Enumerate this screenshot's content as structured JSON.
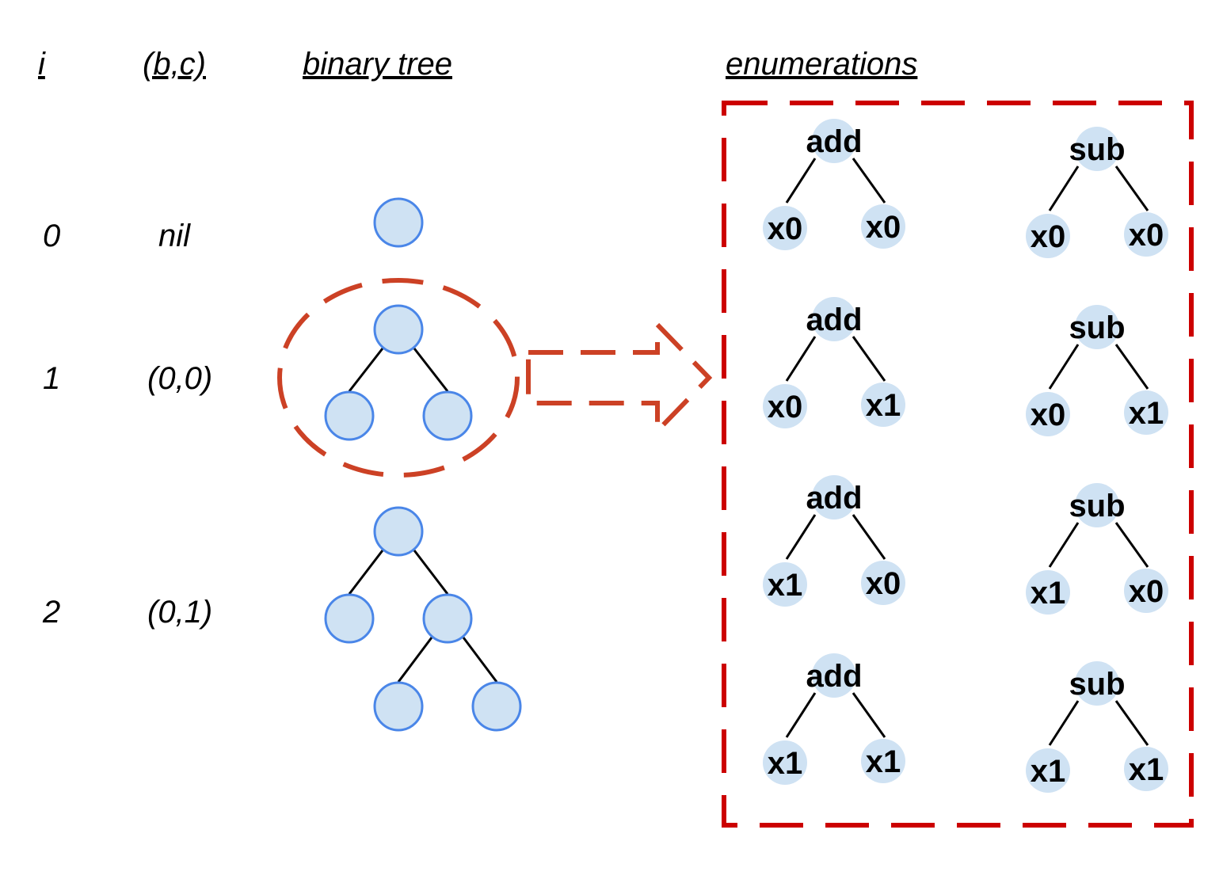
{
  "headers": {
    "i": "i",
    "bc": "(b,c)",
    "tree": "binary tree",
    "enumerations": "enumerations"
  },
  "rows": [
    {
      "i": "0",
      "bc": "nil"
    },
    {
      "i": "1",
      "bc": "(0,0)"
    },
    {
      "i": "2",
      "bc": "(0,1)"
    }
  ],
  "enumerations": [
    {
      "op": "add",
      "left": "x0",
      "right": "x0"
    },
    {
      "op": "sub",
      "left": "x0",
      "right": "x0"
    },
    {
      "op": "add",
      "left": "x0",
      "right": "x1"
    },
    {
      "op": "sub",
      "left": "x0",
      "right": "x1"
    },
    {
      "op": "add",
      "left": "x1",
      "right": "x0"
    },
    {
      "op": "sub",
      "left": "x1",
      "right": "x0"
    },
    {
      "op": "add",
      "left": "x1",
      "right": "x1"
    },
    {
      "op": "sub",
      "left": "x1",
      "right": "x1"
    }
  ],
  "colors": {
    "node_fill": "#cfe2f3",
    "node_stroke": "#4a86e8",
    "highlight_ellipse": "#cc4125",
    "enumeration_box": "#cc0000"
  }
}
